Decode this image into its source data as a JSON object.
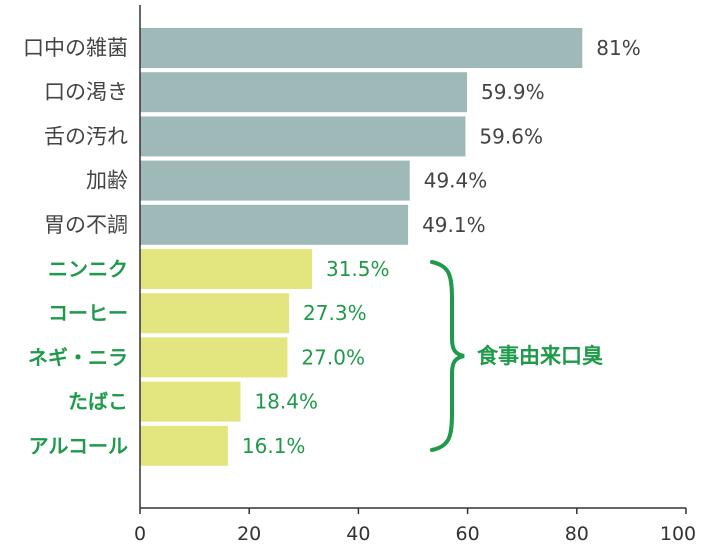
{
  "chart_data": {
    "type": "bar",
    "orientation": "horizontal",
    "categories": [
      "口中の雑菌",
      "口の渇き",
      "舌の汚れ",
      "加齢",
      "胃の不調",
      "ニンニク",
      "コーヒー",
      "ネギ・ニラ",
      "たばこ",
      "アルコール"
    ],
    "values": [
      81,
      59.9,
      59.6,
      49.4,
      49.1,
      31.5,
      27.3,
      27.0,
      18.4,
      16.1
    ],
    "value_labels": [
      "81%",
      "59.9%",
      "59.6%",
      "49.4%",
      "49.1%",
      "31.5%",
      "27.3%",
      "27.0%",
      "18.4%",
      "16.1%"
    ],
    "xlim": [
      0,
      100
    ],
    "x_ticks": [
      "0",
      "20",
      "40",
      "60",
      "80",
      "100"
    ],
    "grid": false,
    "groups": [
      {
        "label": "",
        "start": 0,
        "end": 4,
        "bar_color": "#9fb9b9",
        "text_color": "#444444"
      },
      {
        "label": "食事由来口臭",
        "start": 5,
        "end": 9,
        "bar_color": "#e3e57e",
        "text_color": "#1f9a4a"
      }
    ]
  }
}
